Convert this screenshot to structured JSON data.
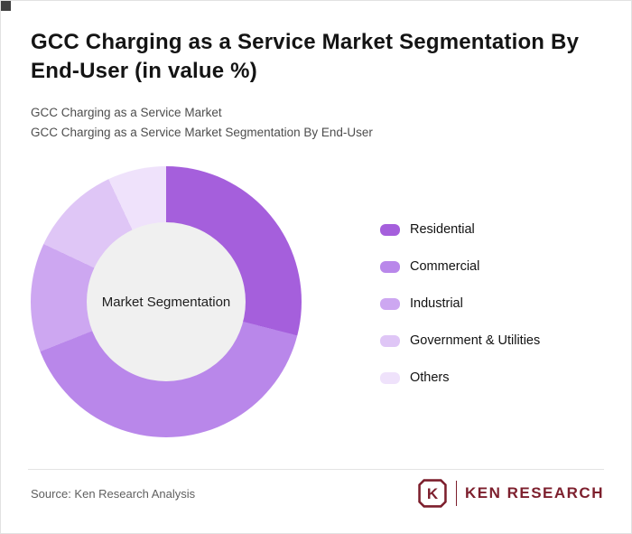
{
  "title": "GCC Charging as a Service Market Segmentation By End-User (in value %)",
  "subtitle_line1": "GCC Charging as a Service Market",
  "subtitle_line2": "GCC Charging as a Service Market Segmentation By End-User",
  "chart_data": {
    "type": "pie",
    "variant": "donut",
    "title": "GCC Charging as a Service Market Segmentation By End-User (in value %)",
    "center_label": "Market Segmentation",
    "categories": [
      "Residential",
      "Commercial",
      "Industrial",
      "Government & Utilities",
      "Others"
    ],
    "values": [
      29,
      40,
      13,
      11,
      7
    ],
    "unit": "%",
    "colors": [
      "#a55fdc",
      "#b987ea",
      "#cda7f1",
      "#dfc6f6",
      "#efe2fb"
    ],
    "hole_color": "#f0f0f0",
    "legend_position": "right",
    "start_angle_deg": 0,
    "direction": "clockwise"
  },
  "footer": {
    "source": "Source: Ken Research Analysis",
    "logo_letter": "K",
    "logo_text": "KEN RESEARCH",
    "logo_color": "#7d1f2d"
  }
}
